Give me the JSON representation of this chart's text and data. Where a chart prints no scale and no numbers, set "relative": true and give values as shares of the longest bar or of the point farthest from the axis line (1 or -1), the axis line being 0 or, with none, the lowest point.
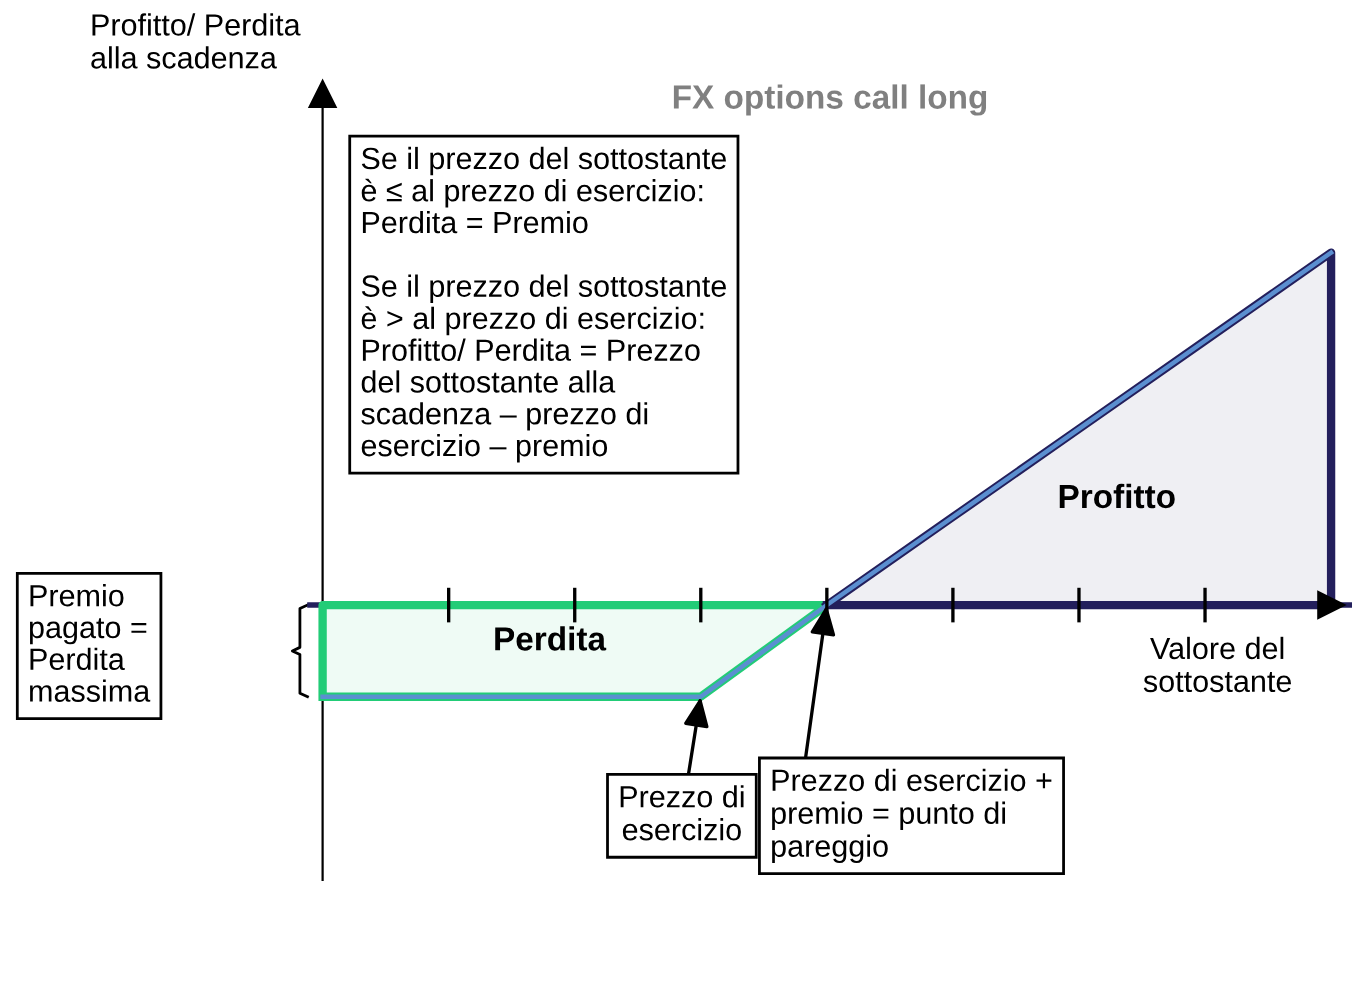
{
  "chart_data": {
    "type": "line",
    "relative": true,
    "title": "FX options call long",
    "xlabel": "Valore del\nsottostante",
    "categories": [
      null,
      null,
      null,
      null,
      null,
      null,
      null,
      null,
      null
    ],
    "series": [
      {
        "name": "Perdita",
        "type": "area",
        "color": "#22cc77",
        "values": [
          -0.26,
          -0.26,
          -0.26,
          -0.26,
          0,
          null,
          null,
          null,
          null
        ]
      },
      {
        "name": "Profitto",
        "type": "area",
        "color": "#231f5c",
        "values": [
          null,
          null,
          null,
          null,
          0,
          0.25,
          0.5,
          0.75,
          1
        ]
      },
      {
        "color": "#5b8fd0",
        "values": [
          -0.26,
          -0.26,
          -0.26,
          -0.26,
          0,
          0.25,
          0.5,
          0.75,
          1
        ]
      }
    ],
    "annotations": [
      "Profitto/ Perdita\nalla scadenza",
      "Se il prezzo del sottostante\nè ≤ al prezzo di esercizio:\nPerdita = Premio\n\nSe il prezzo del sottostante\nè > al prezzo di esercizio:\nProfitto/ Perdita = Prezzo\ndel sottostante alla\nscadenza – prezzo di\nesercizio – premio",
      "Premio\npagato =\nPerdita\nmassima",
      "Prezzo di\nesercizio",
      "Prezzo di esercizio +\npremio = punto di\npareggio"
    ],
    "legend": false
  }
}
